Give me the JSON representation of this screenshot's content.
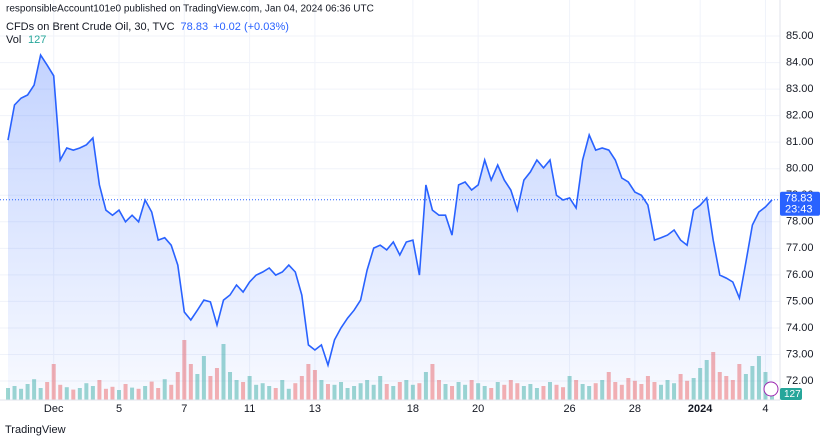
{
  "header": {
    "published": "responsibleAccount101e0 published on TradingView.com, Jan 04, 2024 06:36 UTC",
    "symbol": "CFDs on Brent Crude Oil, 30, TVC",
    "change": "+0.02 (+0.03%)",
    "vol_label": "Vol",
    "countdown": "23:43",
    "brand": "TradingView"
  },
  "chart_data": {
    "type": "area",
    "last_price": 78.83,
    "color": "#2962ff",
    "ylim": [
      71.3,
      86.0
    ],
    "yticks": [
      {
        "value": 72,
        "label": "72.00"
      },
      {
        "value": 73,
        "label": "73.00"
      },
      {
        "value": 74,
        "label": "74.00"
      },
      {
        "value": 75,
        "label": "75.00"
      },
      {
        "value": 76,
        "label": "76.00"
      },
      {
        "value": 77,
        "label": "77.00"
      },
      {
        "value": 78,
        "label": "78.00"
      },
      {
        "value": 79,
        "label": "79.00"
      },
      {
        "value": 80,
        "label": "80.00"
      },
      {
        "value": 81,
        "label": "81.00"
      },
      {
        "value": 82,
        "label": "82.00"
      },
      {
        "value": 83,
        "label": "83.00"
      },
      {
        "value": 84,
        "label": "84.00"
      },
      {
        "value": 85,
        "label": "85.00"
      }
    ],
    "xlim": [
      0,
      117
    ],
    "xticks": [
      {
        "value": 7,
        "label": "Dec"
      },
      {
        "value": 17,
        "label": "5"
      },
      {
        "value": 27,
        "label": "7"
      },
      {
        "value": 37,
        "label": "11"
      },
      {
        "value": 47,
        "label": "13"
      },
      {
        "value": 62,
        "label": "18"
      },
      {
        "value": 72,
        "label": "20"
      },
      {
        "value": 86,
        "label": "26"
      },
      {
        "value": 96,
        "label": "28"
      },
      {
        "value": 106,
        "label": "2024"
      },
      {
        "value": 116,
        "label": "4"
      }
    ],
    "values": [
      81.08,
      82.4,
      82.66,
      82.78,
      83.15,
      84.28,
      83.9,
      83.5,
      80.33,
      80.78,
      80.7,
      80.78,
      80.9,
      81.16,
      79.39,
      78.44,
      78.25,
      78.44,
      78.0,
      78.25,
      78.0,
      78.82,
      78.37,
      77.31,
      77.4,
      77.12,
      76.37,
      74.6,
      74.3,
      74.67,
      75.05,
      74.98,
      74.11,
      75.05,
      75.24,
      75.62,
      75.35,
      75.73,
      75.99,
      76.11,
      76.26,
      75.99,
      76.11,
      76.37,
      76.11,
      75.24,
      73.36,
      73.17,
      73.36,
      72.6,
      73.55,
      74.0,
      74.37,
      74.67,
      75.05,
      76.18,
      77.01,
      77.12,
      76.94,
      77.24,
      76.75,
      77.24,
      77.31,
      75.99,
      79.39,
      78.44,
      78.25,
      78.25,
      77.5,
      79.39,
      79.5,
      79.2,
      79.39,
      80.33,
      79.57,
      80.14,
      79.57,
      79.2,
      78.44,
      79.57,
      79.88,
      80.33,
      80.03,
      80.33,
      79.0,
      78.82,
      78.9,
      78.52,
      80.33,
      81.27,
      80.7,
      80.78,
      80.7,
      80.33,
      79.65,
      79.5,
      79.12,
      79.0,
      78.63,
      77.31,
      77.4,
      77.5,
      77.69,
      77.31,
      77.12,
      78.44,
      78.63,
      78.9,
      77.31,
      75.99,
      75.88,
      75.73,
      75.13,
      76.48,
      77.88,
      78.37,
      78.56,
      78.83
    ],
    "volume": {
      "up_color": "#26a69a",
      "down_color": "#ef5350",
      "lim": [
        0,
        2000
      ],
      "values": [
        300,
        350,
        280,
        400,
        520,
        300,
        450,
        900,
        380,
        320,
        260,
        300,
        420,
        350,
        500,
        280,
        330,
        250,
        400,
        310,
        280,
        350,
        460,
        300,
        520,
        380,
        700,
        1500,
        900,
        650,
        1100,
        600,
        800,
        1400,
        700,
        500,
        450,
        600,
        380,
        420,
        350,
        300,
        500,
        280,
        420,
        600,
        900,
        750,
        500,
        400,
        380,
        450,
        300,
        350,
        420,
        500,
        380,
        600,
        400,
        350,
        450,
        500,
        380,
        420,
        700,
        900,
        500,
        400,
        350,
        450,
        380,
        500,
        420,
        350,
        300,
        450,
        380,
        500,
        420,
        350,
        400,
        300,
        350,
        450,
        380,
        320,
        600,
        500,
        400,
        350,
        420,
        500,
        700,
        450,
        380,
        550,
        480,
        400,
        600,
        450,
        380,
        500,
        420,
        650,
        480,
        550,
        800,
        1000,
        1200,
        700,
        600,
        500,
        900,
        650,
        850,
        1100,
        700,
        127
      ]
    }
  }
}
